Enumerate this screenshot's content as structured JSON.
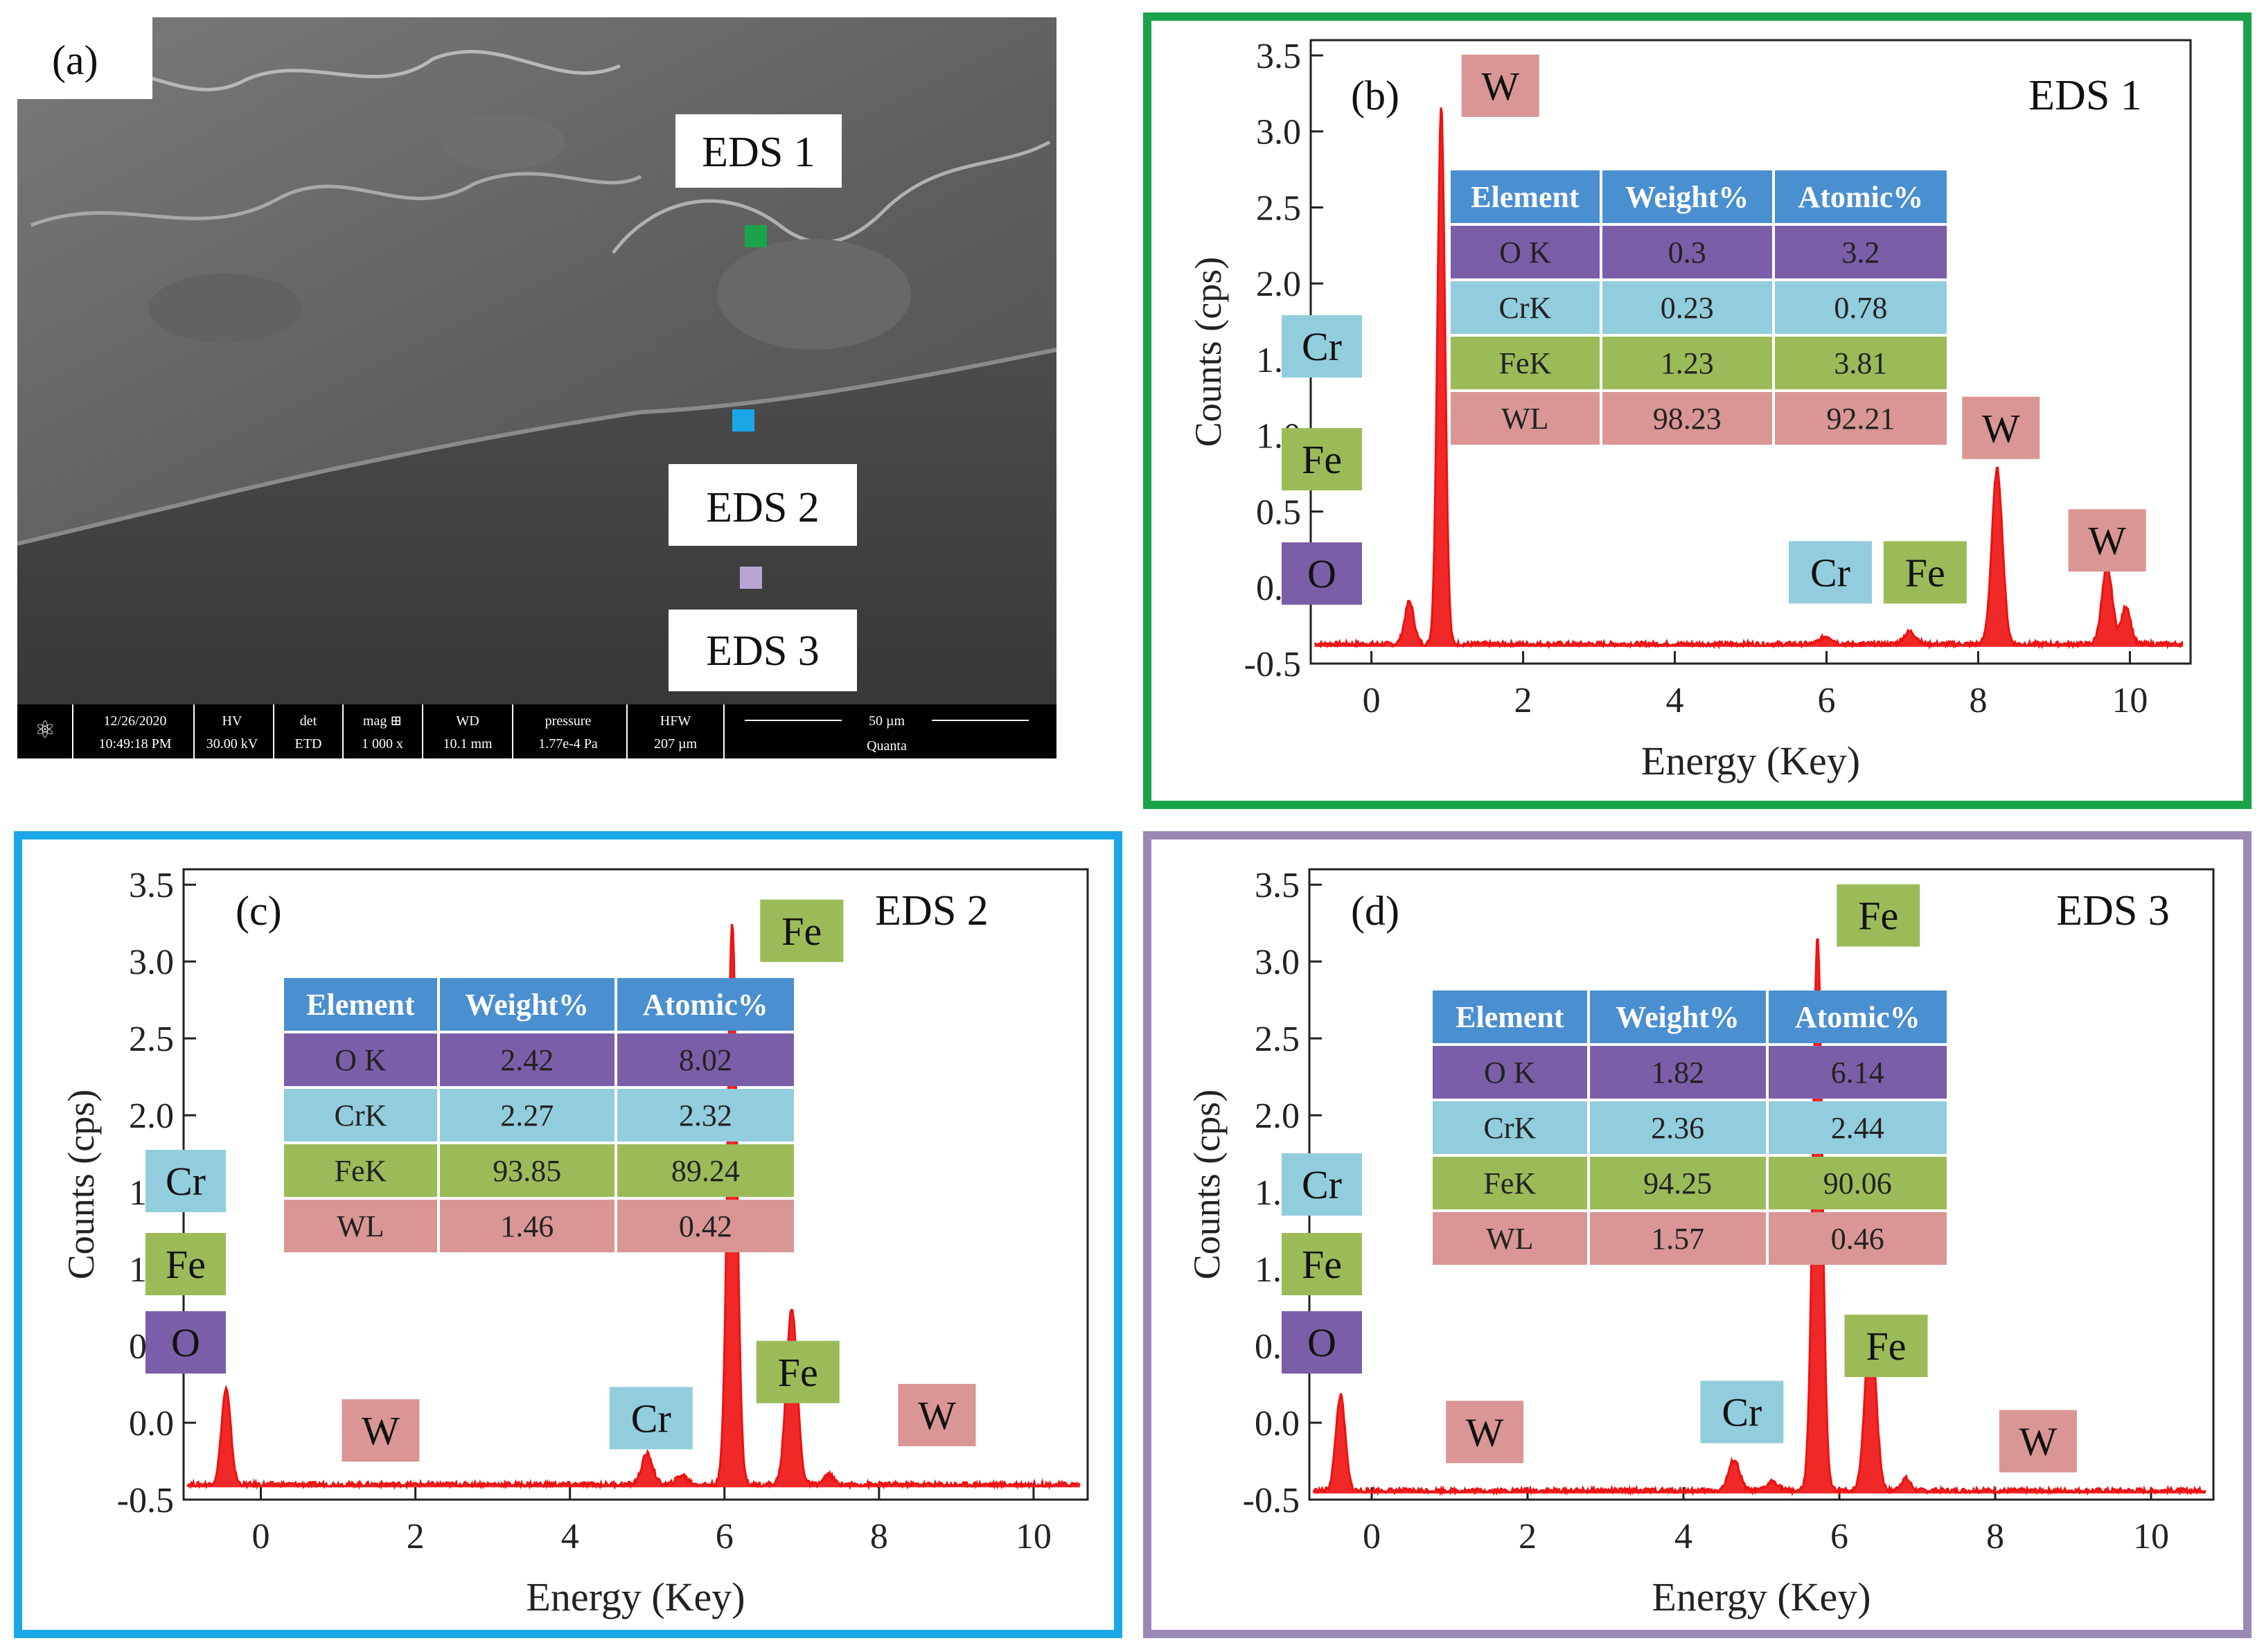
{
  "panel_a": {
    "label": "(a)",
    "markers": [
      {
        "label": "EDS 1",
        "color": "#1aa34a"
      },
      {
        "label": "EDS 2",
        "color": "#1aa7e8"
      },
      {
        "label": "EDS 3",
        "color": "#b7a6d3"
      }
    ],
    "databar": {
      "date": "12/26/2020",
      "time": "10:49:18 PM",
      "hv_label": "HV",
      "hv": "30.00 kV",
      "det_label": "det",
      "det": "ETD",
      "mag_label": "mag ⊞",
      "mag": "1 000 x",
      "wd_label": "WD",
      "wd": "10.1 mm",
      "pressure_label": "pressure",
      "pressure": "1.77e-4 Pa",
      "hfw_label": "HFW",
      "hfw": "207 µm",
      "scale": "50 µm",
      "brand": "Quanta"
    }
  },
  "colors": {
    "spectrum": "#ee1111",
    "O": "#7b5ea8",
    "Cr": "#92cddd",
    "Fe": "#9bbb59",
    "W": "#d99694",
    "header": "#4a8fd0"
  },
  "table_headers": [
    "Element",
    "Weight%",
    "Atomic%"
  ],
  "chart_data": [
    {
      "type": "line",
      "panel": "(b)",
      "title": "EDS 1",
      "xlabel": "Energy (Key)",
      "ylabel": "Counts (cps)",
      "xlim": [
        -0.8,
        10.8
      ],
      "ylim": [
        -0.5,
        3.6
      ],
      "xticks": [
        "0",
        "2",
        "4",
        "6",
        "8",
        "10"
      ],
      "yticks": [
        "-0.5",
        "0.0",
        "0.5",
        "1.0",
        "1.5",
        "2.0",
        "2.5",
        "3.0",
        "3.5"
      ],
      "baseline": -0.37,
      "peaks": [
        {
          "x": 0.5,
          "height": 0.28,
          "width": 0.06
        },
        {
          "x": 0.92,
          "height": 3.55,
          "width": 0.05
        },
        {
          "x": 6.0,
          "height": 0.05,
          "width": 0.08
        },
        {
          "x": 7.1,
          "height": 0.08,
          "width": 0.08
        },
        {
          "x": 8.25,
          "height": 1.15,
          "width": 0.07
        },
        {
          "x": 9.7,
          "height": 0.5,
          "width": 0.07
        },
        {
          "x": 9.95,
          "height": 0.25,
          "width": 0.06
        }
      ],
      "left_labels": [
        "Cr",
        "Fe",
        "O"
      ],
      "peak_labels": [
        {
          "text": "W",
          "x": 1.7,
          "y": 3.3
        },
        {
          "text": "W",
          "x": 8.3,
          "y": 1.05
        },
        {
          "text": "W",
          "x": 9.7,
          "y": 0.31
        },
        {
          "text": "Cr",
          "x": 6.05,
          "y": 0.1
        },
        {
          "text": "Fe",
          "x": 7.3,
          "y": 0.1
        }
      ],
      "table": [
        {
          "element": "O K",
          "weight": "0.3",
          "atomic": "3.2",
          "key": "O"
        },
        {
          "element": "CrK",
          "weight": "0.23",
          "atomic": "0.78",
          "key": "Cr"
        },
        {
          "element": "FeK",
          "weight": "1.23",
          "atomic": "3.81",
          "key": "Fe"
        },
        {
          "element": "WL",
          "weight": "98.23",
          "atomic": "92.21",
          "key": "W"
        }
      ]
    },
    {
      "type": "line",
      "panel": "(c)",
      "title": "EDS 2",
      "xlabel": "Energy (Key)",
      "ylabel": "Counts (cps)",
      "xlim": [
        -1.0,
        10.7
      ],
      "ylim": [
        -0.5,
        3.6
      ],
      "xticks": [
        "0",
        "2",
        "4",
        "6",
        "8",
        "10"
      ],
      "yticks": [
        "-0.5",
        "0.0",
        "0.5",
        "1.0",
        "1.5",
        "2.0",
        "2.5",
        "3.0",
        "3.5"
      ],
      "baseline": -0.4,
      "peaks": [
        {
          "x": -0.45,
          "height": 0.62,
          "width": 0.06
        },
        {
          "x": 5.0,
          "height": 0.2,
          "width": 0.07
        },
        {
          "x": 5.45,
          "height": 0.06,
          "width": 0.07
        },
        {
          "x": 6.1,
          "height": 3.65,
          "width": 0.06
        },
        {
          "x": 6.87,
          "height": 1.15,
          "width": 0.07
        },
        {
          "x": 7.35,
          "height": 0.06,
          "width": 0.06
        }
      ],
      "left_labels": [
        "Cr",
        "Fe",
        "O"
      ],
      "peak_labels": [
        {
          "text": "Fe",
          "x": 7.0,
          "y": 3.2
        },
        {
          "text": "Fe",
          "x": 6.95,
          "y": 0.33
        },
        {
          "text": "Cr",
          "x": 5.05,
          "y": 0.03
        },
        {
          "text": "W",
          "x": 1.55,
          "y": -0.05
        },
        {
          "text": "W",
          "x": 8.75,
          "y": 0.05
        }
      ],
      "table": [
        {
          "element": "O K",
          "weight": "2.42",
          "atomic": "8.02",
          "key": "O"
        },
        {
          "element": "CrK",
          "weight": "2.27",
          "atomic": "2.32",
          "key": "Cr"
        },
        {
          "element": "FeK",
          "weight": "93.85",
          "atomic": "89.24",
          "key": "Fe"
        },
        {
          "element": "WL",
          "weight": "1.46",
          "atomic": "0.42",
          "key": "W"
        }
      ]
    },
    {
      "type": "line",
      "panel": "(d)",
      "title": "EDS 3",
      "xlabel": "Energy (Key)",
      "ylabel": "Counts (cps)",
      "xlim": [
        -0.8,
        10.8
      ],
      "ylim": [
        -0.5,
        3.6
      ],
      "xticks": [
        "0",
        "2",
        "4",
        "6",
        "8",
        "10"
      ],
      "yticks": [
        "-0.5",
        "0.0",
        "0.5",
        "1.0",
        "1.5",
        "2.0",
        "2.5",
        "3.0",
        "3.5"
      ],
      "baseline": -0.44,
      "peaks": [
        {
          "x": -0.4,
          "height": 0.62,
          "width": 0.06
        },
        {
          "x": 4.65,
          "height": 0.2,
          "width": 0.07
        },
        {
          "x": 5.15,
          "height": 0.06,
          "width": 0.07
        },
        {
          "x": 5.72,
          "height": 3.6,
          "width": 0.06
        },
        {
          "x": 6.4,
          "height": 1.1,
          "width": 0.07
        },
        {
          "x": 6.85,
          "height": 0.08,
          "width": 0.06
        }
      ],
      "left_labels": [
        "Cr",
        "Fe",
        "O"
      ],
      "peak_labels": [
        {
          "text": "Fe",
          "x": 6.5,
          "y": 3.3
        },
        {
          "text": "Fe",
          "x": 6.6,
          "y": 0.5
        },
        {
          "text": "Cr",
          "x": 4.75,
          "y": 0.07
        },
        {
          "text": "W",
          "x": 1.45,
          "y": -0.06
        },
        {
          "text": "W",
          "x": 8.55,
          "y": -0.12
        }
      ],
      "table": [
        {
          "element": "O K",
          "weight": "1.82",
          "atomic": "6.14",
          "key": "O"
        },
        {
          "element": "CrK",
          "weight": "2.36",
          "atomic": "2.44",
          "key": "Cr"
        },
        {
          "element": "FeK",
          "weight": "94.25",
          "atomic": "90.06",
          "key": "Fe"
        },
        {
          "element": "WL",
          "weight": "1.57",
          "atomic": "0.46",
          "key": "W"
        }
      ]
    }
  ]
}
